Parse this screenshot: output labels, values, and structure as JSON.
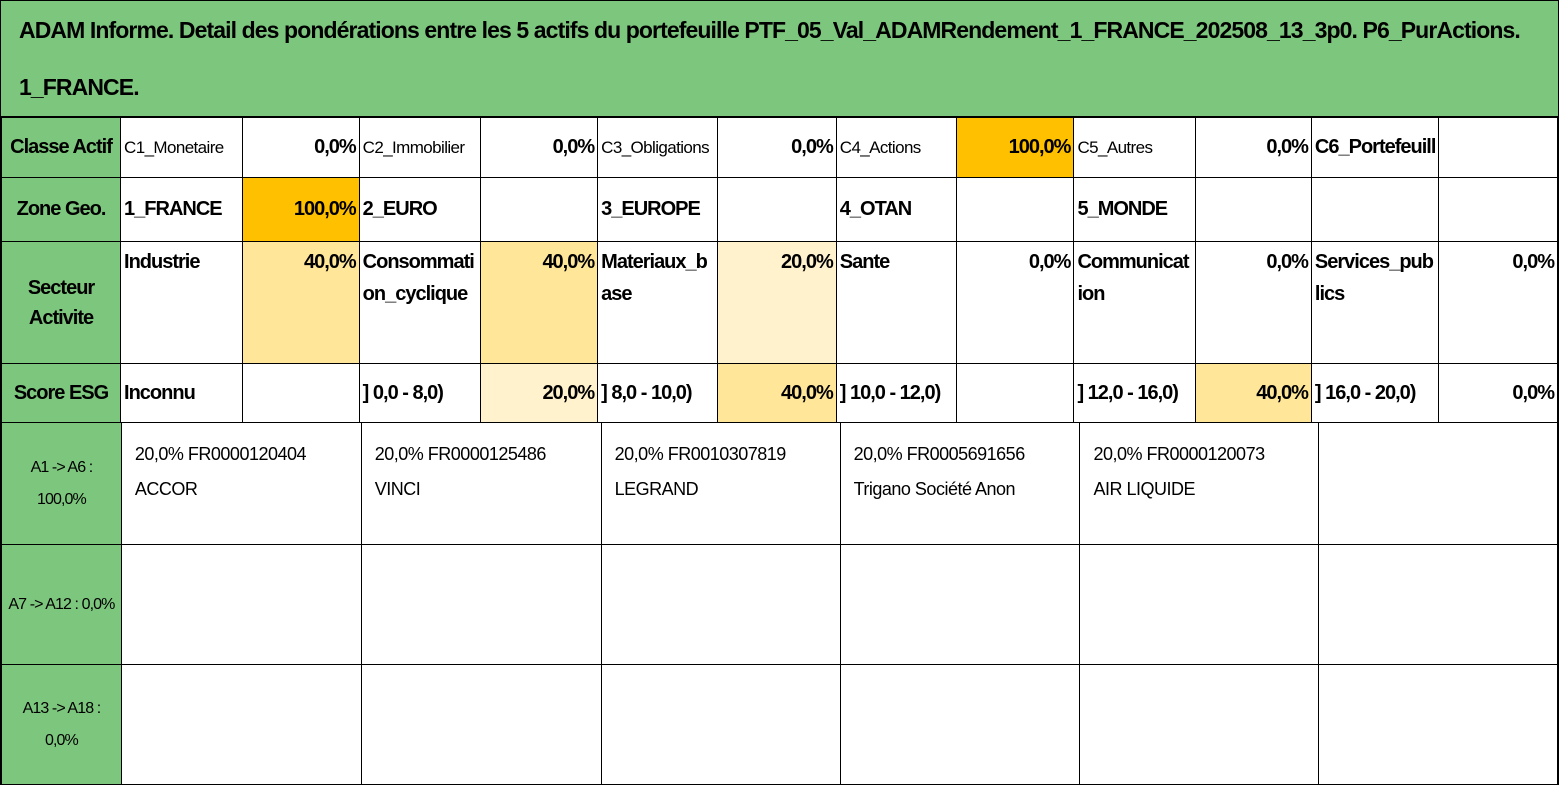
{
  "title": {
    "line1": "ADAM Informe. Detail des pondérations entre les 5 actifs du portefeuille PTF_05_Val_ADAMRendement_1_FRANCE_202508_13_3p0. P6_PurActions.",
    "line2": "1_FRANCE."
  },
  "classe_actif": {
    "header": "Classe Actif",
    "items": [
      {
        "label": "C1_Monetaire",
        "value": "0,0%"
      },
      {
        "label": "C2_Immobilier",
        "value": "0,0%"
      },
      {
        "label": "C3_Obligations",
        "value": "0,0%"
      },
      {
        "label": "C4_Actions",
        "value": "100,0%"
      },
      {
        "label": "C5_Autres",
        "value": "0,0%"
      },
      {
        "label": "C6_Portefeuill",
        "value": ""
      }
    ]
  },
  "zone_geo": {
    "header": "Zone Geo.",
    "items": [
      {
        "label": "1_FRANCE",
        "value": "100,0%"
      },
      {
        "label": "2_EURO",
        "value": ""
      },
      {
        "label": "3_EUROPE",
        "value": ""
      },
      {
        "label": "4_OTAN",
        "value": ""
      },
      {
        "label": "5_MONDE",
        "value": ""
      },
      {
        "label": "",
        "value": ""
      }
    ]
  },
  "secteur_activite": {
    "header": "Secteur Activite",
    "items": [
      {
        "label": "Industrie",
        "value": "40,0%"
      },
      {
        "label": "Consommation_cyclique",
        "value": "40,0%"
      },
      {
        "label": "Materiaux_base",
        "value": "20,0%"
      },
      {
        "label": "Sante",
        "value": "0,0%"
      },
      {
        "label": "Communication",
        "value": "0,0%"
      },
      {
        "label": "Services_publics",
        "value": "0,0%"
      }
    ]
  },
  "score_esg": {
    "header": "Score ESG",
    "items": [
      {
        "label": "Inconnu",
        "value": ""
      },
      {
        "label": "] 0,0 - 8,0)",
        "value": "20,0%"
      },
      {
        "label": "] 8,0 - 10,0)",
        "value": "40,0%"
      },
      {
        "label": "] 10,0 - 12,0)",
        "value": ""
      },
      {
        "label": "] 12,0 - 16,0)",
        "value": "40,0%"
      },
      {
        "label": "] 16,0 - 20,0)",
        "value": "0,0%"
      }
    ]
  },
  "assets_rows": [
    {
      "header": "A1 -> A6 : 100,0%",
      "assets": [
        {
          "line1": "20,0% FR0000120404",
          "line2": "ACCOR"
        },
        {
          "line1": "20,0% FR0000125486",
          "line2": "VINCI"
        },
        {
          "line1": "20,0% FR0010307819",
          "line2": "LEGRAND"
        },
        {
          "line1": "20,0% FR0005691656",
          "line2": "Trigano Société Anon"
        },
        {
          "line1": "20,0% FR0000120073",
          "line2": "AIR LIQUIDE"
        },
        {
          "line1": "",
          "line2": ""
        }
      ]
    },
    {
      "header": "A7 -> A12 : 0,0%",
      "assets": [
        {
          "line1": "",
          "line2": ""
        },
        {
          "line1": "",
          "line2": ""
        },
        {
          "line1": "",
          "line2": ""
        },
        {
          "line1": "",
          "line2": ""
        },
        {
          "line1": "",
          "line2": ""
        },
        {
          "line1": "",
          "line2": ""
        }
      ]
    },
    {
      "header": "A13 -> A18 : 0,0%",
      "assets": [
        {
          "line1": "",
          "line2": ""
        },
        {
          "line1": "",
          "line2": ""
        },
        {
          "line1": "",
          "line2": ""
        },
        {
          "line1": "",
          "line2": ""
        },
        {
          "line1": "",
          "line2": ""
        },
        {
          "line1": "",
          "line2": ""
        }
      ]
    }
  ],
  "colors": {
    "header_green": "#7dc67d",
    "weight_100": "#ffc000",
    "weight_40": "#ffe699",
    "weight_20": "#fff2cc"
  }
}
